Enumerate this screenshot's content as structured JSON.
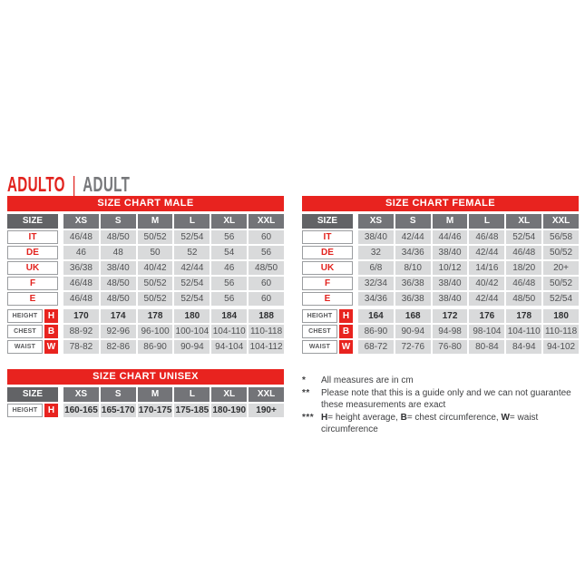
{
  "header": {
    "title_primary": "ADULTO",
    "separator": "|",
    "title_secondary": "ADULT"
  },
  "colors": {
    "brand_red": "#e8231f",
    "accent_red_text": "#e2231e",
    "header_dark_gray": "#626366",
    "header_gray": "#737478",
    "cell_gray": "#d9dadb",
    "text_gray": "#505153"
  },
  "tables": {
    "male": {
      "title": "SIZE CHART MALE",
      "size_header": "SIZE",
      "columns": [
        "XS",
        "S",
        "M",
        "L",
        "XL",
        "XXL"
      ],
      "rows": [
        {
          "label": "IT",
          "values": [
            "46/48",
            "48/50",
            "50/52",
            "52/54",
            "56",
            "60"
          ]
        },
        {
          "label": "DE",
          "values": [
            "46",
            "48",
            "50",
            "52",
            "54",
            "56"
          ]
        },
        {
          "label": "UK",
          "values": [
            "36/38",
            "38/40",
            "40/42",
            "42/44",
            "46",
            "48/50"
          ]
        },
        {
          "label": "F",
          "values": [
            "46/48",
            "48/50",
            "50/52",
            "52/54",
            "56",
            "60"
          ]
        },
        {
          "label": "E",
          "values": [
            "46/48",
            "48/50",
            "50/52",
            "52/54",
            "56",
            "60"
          ]
        }
      ],
      "measure_rows": [
        {
          "label": "HEIGHT",
          "badge": "H",
          "bold": true,
          "values": [
            "170",
            "174",
            "178",
            "180",
            "184",
            "188"
          ]
        },
        {
          "label": "CHEST",
          "badge": "B",
          "bold": false,
          "values": [
            "88-92",
            "92-96",
            "96-100",
            "100-104",
            "104-110",
            "110-118"
          ]
        },
        {
          "label": "WAIST",
          "badge": "W",
          "bold": false,
          "values": [
            "78-82",
            "82-86",
            "86-90",
            "90-94",
            "94-104",
            "104-112"
          ]
        }
      ]
    },
    "female": {
      "title": "SIZE CHART FEMALE",
      "size_header": "SIZE",
      "columns": [
        "XS",
        "S",
        "M",
        "L",
        "XL",
        "XXL"
      ],
      "rows": [
        {
          "label": "IT",
          "values": [
            "38/40",
            "42/44",
            "44/46",
            "46/48",
            "52/54",
            "56/58"
          ]
        },
        {
          "label": "DE",
          "values": [
            "32",
            "34/36",
            "38/40",
            "42/44",
            "46/48",
            "50/52"
          ]
        },
        {
          "label": "UK",
          "values": [
            "6/8",
            "8/10",
            "10/12",
            "14/16",
            "18/20",
            "20+"
          ]
        },
        {
          "label": "F",
          "values": [
            "32/34",
            "36/38",
            "38/40",
            "40/42",
            "46/48",
            "50/52"
          ]
        },
        {
          "label": "E",
          "values": [
            "34/36",
            "36/38",
            "38/40",
            "42/44",
            "48/50",
            "52/54"
          ]
        }
      ],
      "measure_rows": [
        {
          "label": "HEIGHT",
          "badge": "H",
          "bold": true,
          "values": [
            "164",
            "168",
            "172",
            "176",
            "178",
            "180"
          ]
        },
        {
          "label": "CHEST",
          "badge": "B",
          "bold": false,
          "values": [
            "86-90",
            "90-94",
            "94-98",
            "98-104",
            "104-110",
            "110-118"
          ]
        },
        {
          "label": "WAIST",
          "badge": "W",
          "bold": false,
          "values": [
            "68-72",
            "72-76",
            "76-80",
            "80-84",
            "84-94",
            "94-102"
          ]
        }
      ]
    },
    "unisex": {
      "title": "SIZE CHART UNISEX",
      "size_header": "SIZE",
      "columns": [
        "XS",
        "S",
        "M",
        "L",
        "XL",
        "XXL"
      ],
      "rows": [],
      "measure_rows": [
        {
          "label": "HEIGHT",
          "badge": "H",
          "bold": true,
          "values": [
            "160-165",
            "165-170",
            "170-175",
            "175-185",
            "180-190",
            "190+"
          ]
        }
      ]
    }
  },
  "footnotes": [
    {
      "marker": "*",
      "text": "All measures are in cm"
    },
    {
      "marker": "**",
      "text": "Please note that this is a guide only and we can not guarantee these measurements are exact"
    },
    {
      "marker": "***",
      "parts": [
        [
          "b",
          "H"
        ],
        [
          "t",
          "= height average, "
        ],
        [
          "b",
          "B"
        ],
        [
          "t",
          "= chest circumference, "
        ],
        [
          "b",
          "W"
        ],
        [
          "t",
          "= waist circumference"
        ]
      ]
    }
  ]
}
